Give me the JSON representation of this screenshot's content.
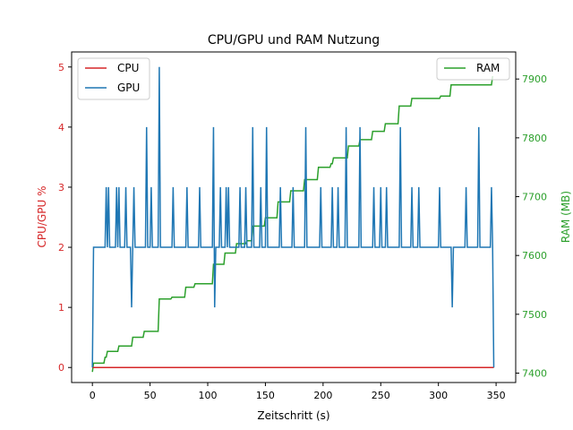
{
  "chart_data": {
    "type": "line",
    "title": "CPU/GPU und RAM Nutzung",
    "xlabel": "Zeitschritt (s)",
    "ylabel_left": "CPU/GPU %",
    "ylabel_right": "RAM (MB)",
    "xlim": [
      -18,
      367
    ],
    "ylim_left": [
      -0.25,
      5.25
    ],
    "ylim_right": [
      7384,
      7946
    ],
    "x_ticks": [
      0,
      50,
      100,
      150,
      200,
      250,
      300,
      350
    ],
    "y_ticks_left": [
      0,
      1,
      2,
      3,
      4,
      5
    ],
    "y_ticks_right": [
      7400,
      7500,
      7600,
      7700,
      7800,
      7900
    ],
    "legend_left_position": "upper left",
    "legend_right_position": "upper right",
    "colors": {
      "cpu": "#d62728",
      "gpu": "#1f77b4",
      "ram": "#2ca02c",
      "left_axis": "#d62728",
      "right_axis": "#2ca02c"
    },
    "series": [
      {
        "name": "CPU",
        "axis": "left",
        "points": [
          [
            0,
            0
          ],
          [
            348,
            0
          ]
        ]
      },
      {
        "name": "GPU",
        "axis": "left",
        "points": [
          [
            0,
            0
          ],
          [
            1,
            2
          ],
          [
            11,
            2
          ],
          [
            12,
            3
          ],
          [
            13,
            2
          ],
          [
            14,
            3
          ],
          [
            15,
            2
          ],
          [
            20,
            2
          ],
          [
            21,
            3
          ],
          [
            22,
            2
          ],
          [
            23,
            3
          ],
          [
            24,
            2
          ],
          [
            28,
            2
          ],
          [
            29,
            3
          ],
          [
            30,
            2
          ],
          [
            33,
            2
          ],
          [
            34,
            1
          ],
          [
            35,
            2
          ],
          [
            36,
            3
          ],
          [
            37,
            2
          ],
          [
            46,
            2
          ],
          [
            47,
            4
          ],
          [
            48,
            2
          ],
          [
            50,
            2
          ],
          [
            51,
            3
          ],
          [
            52,
            2
          ],
          [
            57,
            2
          ],
          [
            58,
            5
          ],
          [
            59,
            2
          ],
          [
            69,
            2
          ],
          [
            70,
            3
          ],
          [
            71,
            2
          ],
          [
            81,
            2
          ],
          [
            82,
            3
          ],
          [
            83,
            2
          ],
          [
            92,
            2
          ],
          [
            93,
            3
          ],
          [
            94,
            2
          ],
          [
            104,
            2
          ],
          [
            105,
            4
          ],
          [
            106,
            1
          ],
          [
            107,
            2
          ],
          [
            110,
            2
          ],
          [
            111,
            3
          ],
          [
            112,
            2
          ],
          [
            115,
            2
          ],
          [
            116,
            3
          ],
          [
            117,
            2
          ],
          [
            118,
            3
          ],
          [
            119,
            2
          ],
          [
            127,
            2
          ],
          [
            128,
            3
          ],
          [
            129,
            2
          ],
          [
            132,
            2
          ],
          [
            133,
            3
          ],
          [
            134,
            2
          ],
          [
            138,
            2
          ],
          [
            139,
            4
          ],
          [
            140,
            2
          ],
          [
            145,
            2
          ],
          [
            146,
            3
          ],
          [
            147,
            2
          ],
          [
            150,
            2
          ],
          [
            151,
            4
          ],
          [
            152,
            2
          ],
          [
            162,
            2
          ],
          [
            163,
            3
          ],
          [
            164,
            2
          ],
          [
            173,
            2
          ],
          [
            174,
            3
          ],
          [
            175,
            2
          ],
          [
            184,
            2
          ],
          [
            185,
            4
          ],
          [
            186,
            2
          ],
          [
            197,
            2
          ],
          [
            198,
            3
          ],
          [
            199,
            2
          ],
          [
            207,
            2
          ],
          [
            208,
            3
          ],
          [
            209,
            2
          ],
          [
            212,
            2
          ],
          [
            213,
            3
          ],
          [
            214,
            2
          ],
          [
            219,
            2
          ],
          [
            220,
            4
          ],
          [
            221,
            2
          ],
          [
            231,
            2
          ],
          [
            232,
            4
          ],
          [
            233,
            2
          ],
          [
            243,
            2
          ],
          [
            244,
            3
          ],
          [
            245,
            2
          ],
          [
            249,
            2
          ],
          [
            250,
            3
          ],
          [
            251,
            2
          ],
          [
            254,
            2
          ],
          [
            255,
            3
          ],
          [
            256,
            2
          ],
          [
            266,
            2
          ],
          [
            267,
            4
          ],
          [
            268,
            2
          ],
          [
            276,
            2
          ],
          [
            277,
            3
          ],
          [
            278,
            2
          ],
          [
            282,
            2
          ],
          [
            283,
            3
          ],
          [
            284,
            2
          ],
          [
            300,
            2
          ],
          [
            301,
            3
          ],
          [
            302,
            2
          ],
          [
            311,
            2
          ],
          [
            312,
            1
          ],
          [
            313,
            2
          ],
          [
            323,
            2
          ],
          [
            324,
            3
          ],
          [
            325,
            2
          ],
          [
            334,
            2
          ],
          [
            335,
            4
          ],
          [
            336,
            2
          ],
          [
            345,
            2
          ],
          [
            346,
            3
          ],
          [
            347,
            2
          ],
          [
            348,
            0
          ]
        ]
      },
      {
        "name": "RAM",
        "axis": "right",
        "points": [
          [
            0,
            7402
          ],
          [
            1,
            7417
          ],
          [
            10,
            7417
          ],
          [
            11,
            7427
          ],
          [
            12,
            7427
          ],
          [
            13,
            7437
          ],
          [
            22,
            7437
          ],
          [
            23,
            7446
          ],
          [
            34,
            7446
          ],
          [
            35,
            7461
          ],
          [
            44,
            7461
          ],
          [
            45,
            7471
          ],
          [
            57,
            7471
          ],
          [
            58,
            7526
          ],
          [
            68,
            7526
          ],
          [
            69,
            7529
          ],
          [
            80,
            7529
          ],
          [
            81,
            7546
          ],
          [
            88,
            7546
          ],
          [
            89,
            7552
          ],
          [
            104,
            7552
          ],
          [
            105,
            7585
          ],
          [
            114,
            7585
          ],
          [
            115,
            7604
          ],
          [
            124,
            7604
          ],
          [
            125,
            7620
          ],
          [
            133,
            7620
          ],
          [
            134,
            7625
          ],
          [
            138,
            7625
          ],
          [
            139,
            7650
          ],
          [
            149,
            7650
          ],
          [
            150,
            7664
          ],
          [
            160,
            7664
          ],
          [
            161,
            7691
          ],
          [
            171,
            7691
          ],
          [
            172,
            7710
          ],
          [
            183,
            7710
          ],
          [
            184,
            7729
          ],
          [
            195,
            7729
          ],
          [
            196,
            7750
          ],
          [
            206,
            7750
          ],
          [
            207,
            7756
          ],
          [
            208,
            7756
          ],
          [
            209,
            7766
          ],
          [
            221,
            7766
          ],
          [
            222,
            7786
          ],
          [
            231,
            7786
          ],
          [
            232,
            7797
          ],
          [
            242,
            7797
          ],
          [
            243,
            7811
          ],
          [
            253,
            7811
          ],
          [
            254,
            7824
          ],
          [
            265,
            7824
          ],
          [
            266,
            7854
          ],
          [
            276,
            7854
          ],
          [
            277,
            7867
          ],
          [
            301,
            7867
          ],
          [
            302,
            7871
          ],
          [
            310,
            7871
          ],
          [
            311,
            7890
          ],
          [
            346,
            7890
          ],
          [
            347,
            7905
          ]
        ]
      }
    ]
  }
}
